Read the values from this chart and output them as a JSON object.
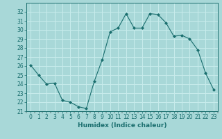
{
  "x": [
    0,
    1,
    2,
    3,
    4,
    5,
    6,
    7,
    8,
    9,
    10,
    11,
    12,
    13,
    14,
    15,
    16,
    17,
    18,
    19,
    20,
    21,
    22,
    23
  ],
  "y": [
    26.1,
    25.0,
    24.0,
    24.1,
    22.2,
    22.0,
    21.5,
    21.3,
    24.3,
    26.7,
    29.8,
    30.2,
    31.8,
    30.2,
    30.2,
    31.8,
    31.7,
    30.8,
    29.3,
    29.4,
    29.0,
    27.8,
    25.2,
    23.4
  ],
  "line_color": "#1a6e6e",
  "marker": "D",
  "marker_size": 2,
  "bg_color": "#a8d8d8",
  "grid_color": "#c8ecec",
  "xlabel": "Humidex (Indice chaleur)",
  "ylim": [
    21,
    33
  ],
  "xlim": [
    -0.5,
    23.5
  ],
  "xticks": [
    0,
    1,
    2,
    3,
    4,
    5,
    6,
    7,
    8,
    9,
    10,
    11,
    12,
    13,
    14,
    15,
    16,
    17,
    18,
    19,
    20,
    21,
    22,
    23
  ],
  "yticks": [
    21,
    22,
    23,
    24,
    25,
    26,
    27,
    28,
    29,
    30,
    31,
    32
  ],
  "tick_fontsize": 5.5,
  "xlabel_fontsize": 6.5
}
